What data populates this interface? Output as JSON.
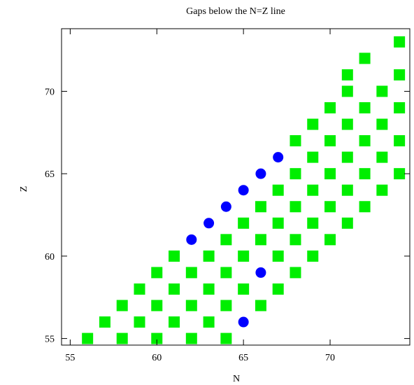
{
  "chart_data": {
    "type": "scatter",
    "title": "Gaps below the N=Z line",
    "xlabel": "N",
    "ylabel": "Z",
    "xlim": [
      54.5,
      74.6
    ],
    "ylim": [
      54.6,
      73.8
    ],
    "xticks": [
      55,
      60,
      65,
      70
    ],
    "yticks": [
      55,
      60,
      65,
      70
    ],
    "grid": false,
    "legend": "none",
    "series": [
      {
        "marker": "square",
        "color": "#00ee00",
        "points": [
          [
            56,
            55
          ],
          [
            58,
            55
          ],
          [
            60,
            55
          ],
          [
            62,
            55
          ],
          [
            64,
            55
          ],
          [
            57,
            56
          ],
          [
            59,
            56
          ],
          [
            61,
            56
          ],
          [
            63,
            56
          ],
          [
            58,
            57
          ],
          [
            60,
            57
          ],
          [
            62,
            57
          ],
          [
            64,
            57
          ],
          [
            66,
            57
          ],
          [
            59,
            58
          ],
          [
            61,
            58
          ],
          [
            63,
            58
          ],
          [
            65,
            58
          ],
          [
            67,
            58
          ],
          [
            60,
            59
          ],
          [
            62,
            59
          ],
          [
            64,
            59
          ],
          [
            68,
            59
          ],
          [
            61,
            60
          ],
          [
            63,
            60
          ],
          [
            65,
            60
          ],
          [
            67,
            60
          ],
          [
            69,
            60
          ],
          [
            64,
            61
          ],
          [
            66,
            61
          ],
          [
            68,
            61
          ],
          [
            70,
            61
          ],
          [
            65,
            62
          ],
          [
            67,
            62
          ],
          [
            69,
            62
          ],
          [
            71,
            62
          ],
          [
            66,
            63
          ],
          [
            68,
            63
          ],
          [
            70,
            63
          ],
          [
            72,
            63
          ],
          [
            67,
            64
          ],
          [
            69,
            64
          ],
          [
            71,
            64
          ],
          [
            73,
            64
          ],
          [
            68,
            65
          ],
          [
            70,
            65
          ],
          [
            72,
            65
          ],
          [
            74,
            65
          ],
          [
            69,
            66
          ],
          [
            71,
            66
          ],
          [
            73,
            66
          ],
          [
            68,
            67
          ],
          [
            70,
            67
          ],
          [
            72,
            67
          ],
          [
            74,
            67
          ],
          [
            69,
            68
          ],
          [
            71,
            68
          ],
          [
            73,
            68
          ],
          [
            70,
            69
          ],
          [
            72,
            69
          ],
          [
            74,
            69
          ],
          [
            71,
            70
          ],
          [
            73,
            70
          ],
          [
            71,
            71
          ],
          [
            74,
            71
          ],
          [
            72,
            72
          ],
          [
            74,
            73
          ]
        ]
      },
      {
        "marker": "circle",
        "color": "#0000ff",
        "points": [
          [
            62,
            61
          ],
          [
            63,
            62
          ],
          [
            64,
            63
          ],
          [
            65,
            64
          ],
          [
            66,
            65
          ],
          [
            67,
            66
          ],
          [
            66,
            59
          ],
          [
            65,
            56
          ]
        ]
      }
    ]
  }
}
